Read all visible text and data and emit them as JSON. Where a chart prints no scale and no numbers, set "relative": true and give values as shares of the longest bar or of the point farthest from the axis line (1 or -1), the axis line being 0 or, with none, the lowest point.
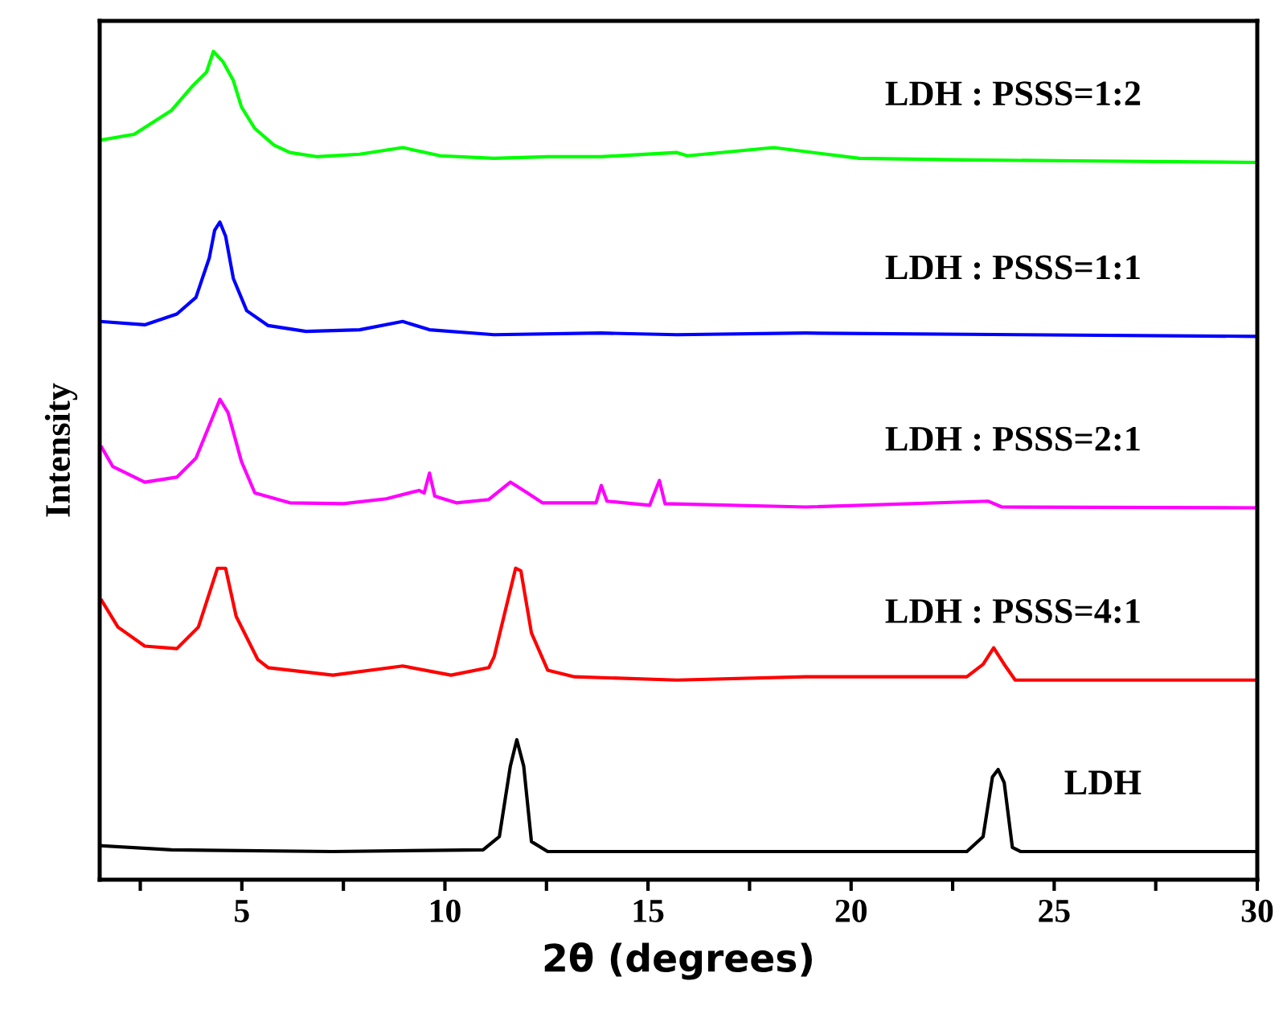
{
  "chart_data": {
    "type": "line",
    "relative": true,
    "xlabel": "2θ (degrees)",
    "ylabel": "Intensity",
    "xlim": [
      1.5,
      30
    ],
    "xticks": [
      {
        "value": 2.5,
        "label": null
      },
      5,
      {
        "value": 7.5,
        "label": null
      },
      10,
      {
        "value": 12.5,
        "label": null
      },
      15,
      {
        "value": 17.5,
        "label": null
      },
      20,
      {
        "value": 22.5,
        "label": null
      },
      25,
      {
        "value": 27.5,
        "label": null
      },
      30
    ],
    "tick_labels": "x",
    "grid": false,
    "legend": false,
    "marker": "none",
    "line_style": "solid",
    "series": [
      {
        "name": "LDH : PSSS=1:2",
        "color": "#00ff00",
        "x": [
          1.51,
          2.35,
          3.27,
          3.8,
          4.13,
          4.3,
          4.53,
          4.79,
          4.99,
          5.32,
          5.79,
          6.18,
          6.84,
          7.9,
          8.96,
          9.89,
          11.21,
          12.53,
          13.85,
          15.71,
          15.97,
          18.09,
          20.2,
          22.85,
          25.5,
          30.0
        ],
        "values": [
          0.893,
          0.9,
          0.929,
          0.959,
          0.975,
          1.0,
          0.988,
          0.965,
          0.933,
          0.907,
          0.887,
          0.878,
          0.873,
          0.876,
          0.884,
          0.874,
          0.871,
          0.873,
          0.873,
          0.878,
          0.874,
          0.884,
          0.871,
          0.869,
          0.868,
          0.866
        ]
      },
      {
        "name": "LDH : PSSS=1:1",
        "color": "#0000ff",
        "x": [
          1.51,
          2.61,
          3.4,
          3.87,
          4.2,
          4.33,
          4.46,
          4.6,
          4.79,
          5.12,
          5.65,
          6.58,
          7.9,
          8.96,
          9.62,
          11.21,
          13.85,
          15.71,
          18.88,
          24.17,
          30.0
        ],
        "values": [
          0.674,
          0.67,
          0.683,
          0.703,
          0.751,
          0.784,
          0.794,
          0.777,
          0.726,
          0.687,
          0.669,
          0.662,
          0.664,
          0.674,
          0.664,
          0.658,
          0.66,
          0.658,
          0.66,
          0.658,
          0.656
        ]
      },
      {
        "name": "LDH : PSSS=2:1",
        "color": "#ff00ff",
        "x": [
          1.55,
          1.82,
          2.61,
          3.4,
          3.87,
          4.27,
          4.46,
          4.66,
          4.99,
          5.32,
          6.18,
          7.5,
          8.56,
          9.36,
          9.49,
          9.62,
          9.75,
          10.28,
          11.08,
          11.61,
          12.0,
          12.4,
          13.72,
          13.85,
          13.99,
          15.04,
          15.28,
          15.42,
          18.88,
          23.38,
          23.71,
          30.0
        ],
        "values": [
          0.522,
          0.499,
          0.48,
          0.486,
          0.509,
          0.557,
          0.58,
          0.564,
          0.505,
          0.467,
          0.455,
          0.454,
          0.46,
          0.47,
          0.467,
          0.491,
          0.463,
          0.455,
          0.459,
          0.48,
          0.468,
          0.455,
          0.455,
          0.476,
          0.457,
          0.452,
          0.482,
          0.454,
          0.45,
          0.457,
          0.45,
          0.449
        ]
      },
      {
        "name": "LDH : PSSS=4:1",
        "color": "#ff0000",
        "x": [
          1.55,
          1.95,
          2.61,
          3.4,
          3.93,
          4.4,
          4.6,
          4.86,
          5.39,
          5.65,
          7.24,
          8.96,
          10.15,
          11.08,
          11.21,
          11.74,
          11.87,
          12.13,
          12.53,
          13.19,
          15.71,
          18.88,
          22.85,
          23.25,
          23.51,
          23.77,
          24.04,
          30.0
        ],
        "values": [
          0.337,
          0.305,
          0.282,
          0.279,
          0.305,
          0.376,
          0.376,
          0.318,
          0.266,
          0.256,
          0.247,
          0.258,
          0.247,
          0.256,
          0.269,
          0.376,
          0.373,
          0.298,
          0.253,
          0.245,
          0.241,
          0.245,
          0.245,
          0.26,
          0.28,
          0.26,
          0.241,
          0.241
        ]
      },
      {
        "name": "LDH",
        "color": "#000000",
        "x": [
          1.55,
          3.27,
          7.24,
          10.94,
          11.34,
          11.61,
          11.77,
          11.94,
          12.13,
          12.53,
          15.71,
          22.85,
          23.25,
          23.48,
          23.62,
          23.77,
          23.97,
          24.17,
          30.0
        ],
        "values": [
          0.041,
          0.036,
          0.034,
          0.036,
          0.052,
          0.137,
          0.169,
          0.137,
          0.046,
          0.034,
          0.034,
          0.034,
          0.052,
          0.124,
          0.133,
          0.117,
          0.039,
          0.034,
          0.034
        ]
      }
    ]
  }
}
